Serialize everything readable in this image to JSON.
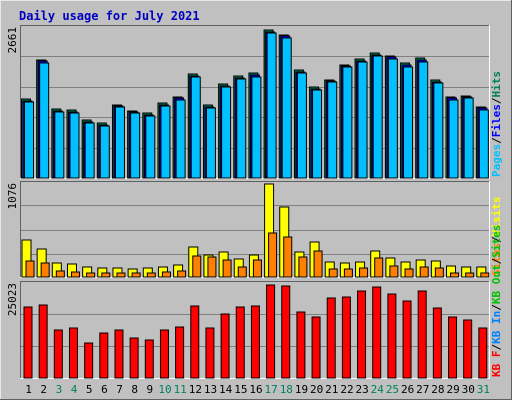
{
  "title": "Daily usage for July 2021",
  "colors": {
    "background": "#c0c0c0",
    "title": "#0000c0",
    "hits": "#00805c",
    "files": "#0000ff",
    "pages": "#00c0ff",
    "visits": "#ffff00",
    "sites": "#ff8000",
    "kbin": "#0080ff",
    "kbout": "#00c000",
    "kbf": "#ff0000",
    "weekend_day": "#00805c",
    "weekday_day": "#000000"
  },
  "chart_data": [
    {
      "type": "bar",
      "panel": "hits-files-pages",
      "categories": [
        "1",
        "2",
        "3",
        "4",
        "5",
        "6",
        "7",
        "8",
        "9",
        "10",
        "11",
        "12",
        "13",
        "14",
        "15",
        "16",
        "17",
        "18",
        "19",
        "20",
        "21",
        "22",
        "23",
        "24",
        "25",
        "26",
        "27",
        "28",
        "29",
        "30",
        "31"
      ],
      "weekend_days": [
        "3",
        "4",
        "10",
        "11",
        "17",
        "18",
        "24",
        "25",
        "31"
      ],
      "ymax_label": "2661",
      "ylim": [
        0,
        2661
      ],
      "legend": [
        "Pages",
        "Files",
        "Hits"
      ],
      "series": [
        {
          "name": "Hits",
          "values": [
            1420,
            2130,
            1240,
            1220,
            1040,
            990,
            1320,
            1210,
            1160,
            1340,
            1460,
            1870,
            1310,
            1690,
            1830,
            1880,
            2661,
            2580,
            1940,
            1630,
            1770,
            2040,
            2140,
            2250,
            2200,
            2060,
            2150,
            1760,
            1460,
            1480,
            1280
          ]
        },
        {
          "name": "Files",
          "values": [
            1390,
            2100,
            1210,
            1190,
            1010,
            960,
            1290,
            1180,
            1130,
            1310,
            1430,
            1840,
            1280,
            1660,
            1800,
            1850,
            2630,
            2550,
            1910,
            1600,
            1740,
            2010,
            2110,
            2220,
            2170,
            2030,
            2120,
            1730,
            1430,
            1450,
            1250
          ]
        },
        {
          "name": "Pages",
          "values": [
            1360,
            2070,
            1190,
            1170,
            990,
            940,
            1270,
            1160,
            1110,
            1290,
            1410,
            1810,
            1260,
            1640,
            1780,
            1820,
            2600,
            2520,
            1890,
            1580,
            1720,
            1990,
            2090,
            2190,
            2140,
            2000,
            2090,
            1710,
            1410,
            1430,
            1230
          ]
        }
      ]
    },
    {
      "type": "bar",
      "panel": "visits-sites",
      "categories": [
        "1",
        "2",
        "3",
        "4",
        "5",
        "6",
        "7",
        "8",
        "9",
        "10",
        "11",
        "12",
        "13",
        "14",
        "15",
        "16",
        "17",
        "18",
        "19",
        "20",
        "21",
        "22",
        "23",
        "24",
        "25",
        "26",
        "27",
        "28",
        "29",
        "30",
        "31"
      ],
      "ymax_label": "1076",
      "ylim": [
        0,
        1076
      ],
      "legend": [
        "Visits",
        "Sites"
      ],
      "series": [
        {
          "name": "Visits",
          "values": [
            430,
            320,
            160,
            150,
            110,
            100,
            100,
            90,
            100,
            110,
            140,
            350,
            250,
            290,
            210,
            250,
            1076,
            810,
            290,
            410,
            170,
            160,
            170,
            300,
            220,
            170,
            200,
            180,
            130,
            120,
            120
          ]
        },
        {
          "name": "Sites",
          "values": [
            180,
            160,
            70,
            60,
            50,
            45,
            50,
            45,
            50,
            55,
            70,
            240,
            230,
            200,
            120,
            200,
            510,
            460,
            230,
            300,
            90,
            90,
            100,
            220,
            130,
            90,
            120,
            100,
            50,
            50,
            50
          ]
        }
      ]
    },
    {
      "type": "bar",
      "panel": "kbf",
      "categories": [
        "1",
        "2",
        "3",
        "4",
        "5",
        "6",
        "7",
        "8",
        "9",
        "10",
        "11",
        "12",
        "13",
        "14",
        "15",
        "16",
        "17",
        "18",
        "19",
        "20",
        "21",
        "22",
        "23",
        "24",
        "25",
        "26",
        "27",
        "28",
        "29",
        "30",
        "31"
      ],
      "ymax_label": "25023",
      "ylim": [
        0,
        25023
      ],
      "legend": [
        "KB F",
        "KB In",
        "KB Out",
        "Sites"
      ],
      "series": [
        {
          "name": "KB F",
          "values": [
            19000,
            19600,
            13000,
            13400,
            9300,
            12000,
            12800,
            10800,
            10300,
            12900,
            13700,
            19500,
            13400,
            17300,
            19200,
            19300,
            25023,
            24800,
            17800,
            16400,
            21500,
            21800,
            23500,
            24600,
            22500,
            20800,
            23300,
            18800,
            16300,
            15700,
            13500
          ]
        }
      ]
    }
  ]
}
